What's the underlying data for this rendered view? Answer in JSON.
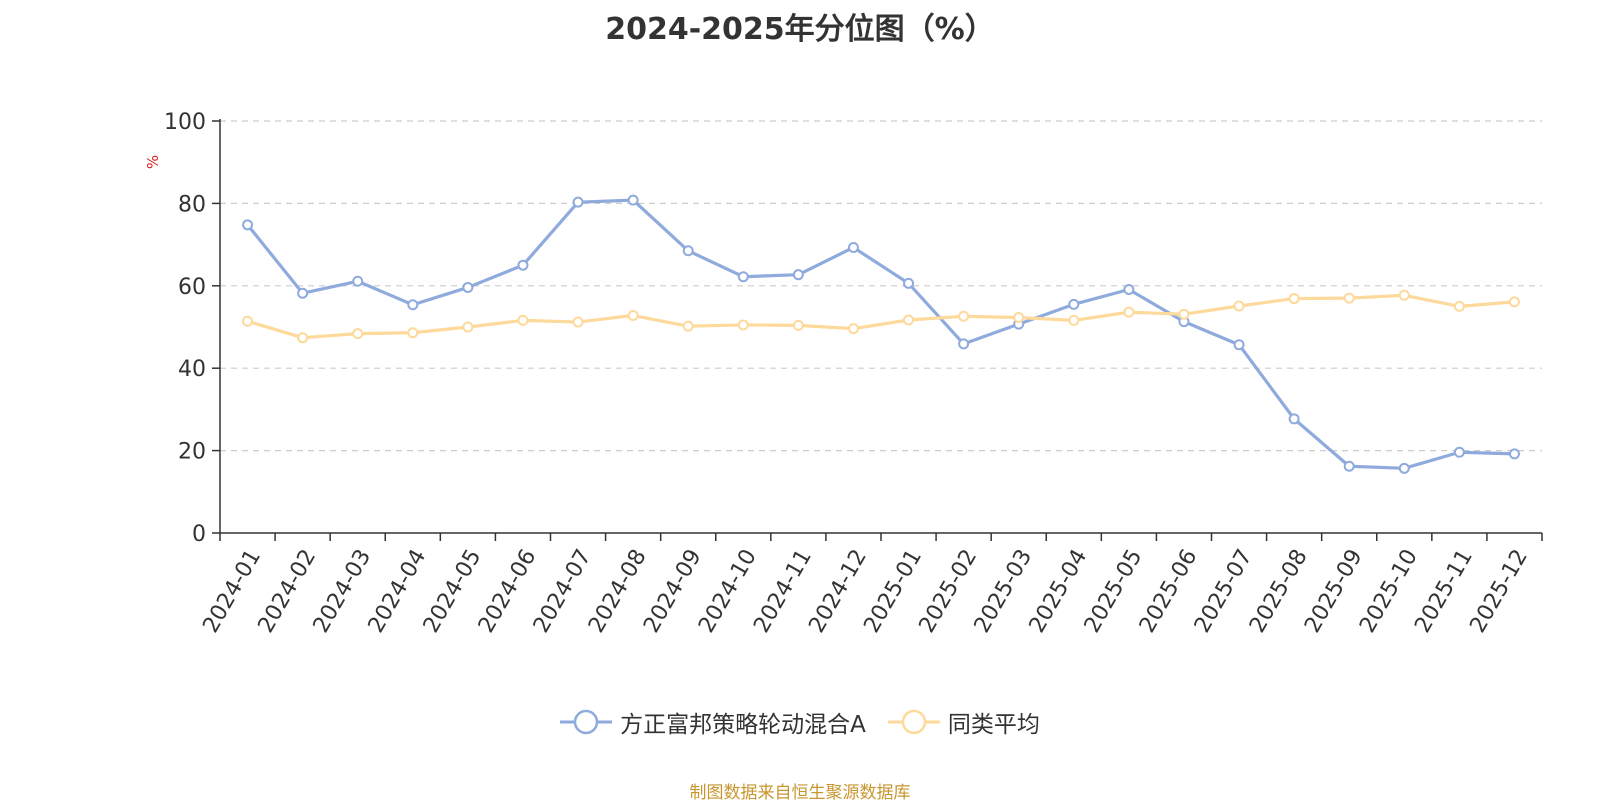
{
  "chart_data": {
    "type": "line",
    "title": "2024-2025年分位图（%）",
    "ylabel": "%",
    "xlabel": "",
    "ylim": [
      0,
      100
    ],
    "yticks": [
      0,
      20,
      40,
      60,
      80,
      100
    ],
    "grid": true,
    "legend_position": "bottom-center",
    "categories": [
      "2024-01",
      "2024-02",
      "2024-03",
      "2024-04",
      "2024-05",
      "2024-06",
      "2024-07",
      "2024-08",
      "2024-09",
      "2024-10",
      "2024-11",
      "2024-12",
      "2025-01",
      "2025-02",
      "2025-03",
      "2025-04",
      "2025-05",
      "2025-06",
      "2025-07",
      "2025-08",
      "2025-09",
      "2025-10",
      "2025-11",
      "2025-12"
    ],
    "series": [
      {
        "name": "方正富邦策略轮动混合A",
        "color": "#8faadc",
        "values": [
          74.8,
          58.2,
          61.1,
          55.4,
          59.6,
          65.0,
          80.3,
          80.8,
          68.5,
          62.2,
          62.7,
          69.3,
          60.6,
          45.9,
          50.7,
          55.5,
          59.1,
          51.3,
          45.7,
          27.7,
          16.2,
          15.7,
          19.6,
          19.2
        ]
      },
      {
        "name": "同类平均",
        "color": "#fdd99b",
        "values": [
          51.4,
          47.4,
          48.4,
          48.6,
          50.0,
          51.6,
          51.2,
          52.8,
          50.2,
          50.5,
          50.4,
          49.6,
          51.7,
          52.6,
          52.3,
          51.6,
          53.6,
          53.1,
          55.1,
          56.9,
          57.0,
          57.7,
          55.0,
          56.1
        ]
      }
    ]
  },
  "source_note": "制图数据来自恒生聚源数据库"
}
